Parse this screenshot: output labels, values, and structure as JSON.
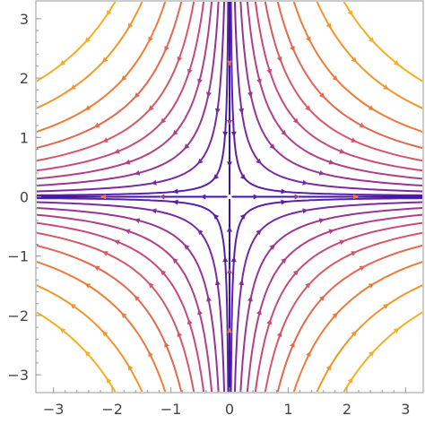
{
  "chart_data": {
    "type": "streamplot",
    "title": "",
    "xlabel": "",
    "ylabel": "",
    "field": {
      "u": "x",
      "v": "-y"
    },
    "xlim": [
      -3.3,
      3.3
    ],
    "ylim": [
      -3.3,
      3.3
    ],
    "x_ticks": [
      -3,
      -2,
      -1,
      0,
      1,
      2,
      3
    ],
    "y_ticks": [
      -3,
      -2,
      -1,
      0,
      1,
      2,
      3
    ],
    "x_tick_labels": [
      "−3",
      "−2",
      "−1",
      "0",
      "1",
      "2",
      "3"
    ],
    "y_tick_labels": [
      "−3",
      "−2",
      "−1",
      "0",
      "1",
      "2",
      "3"
    ],
    "grid": false,
    "color_scale": [
      "#2a10b0",
      "#7a2aa0",
      "#c94a78",
      "#ee7a3a",
      "#f5b020"
    ],
    "streamline_constants_c": [
      -6.4,
      -4.9,
      -3.6,
      -2.7,
      -2.0,
      -1.45,
      -1.0,
      -0.62,
      -0.3,
      -0.08,
      0.08,
      0.3,
      0.62,
      1.0,
      1.45,
      2.0,
      2.7,
      3.6,
      4.9,
      6.4
    ]
  }
}
